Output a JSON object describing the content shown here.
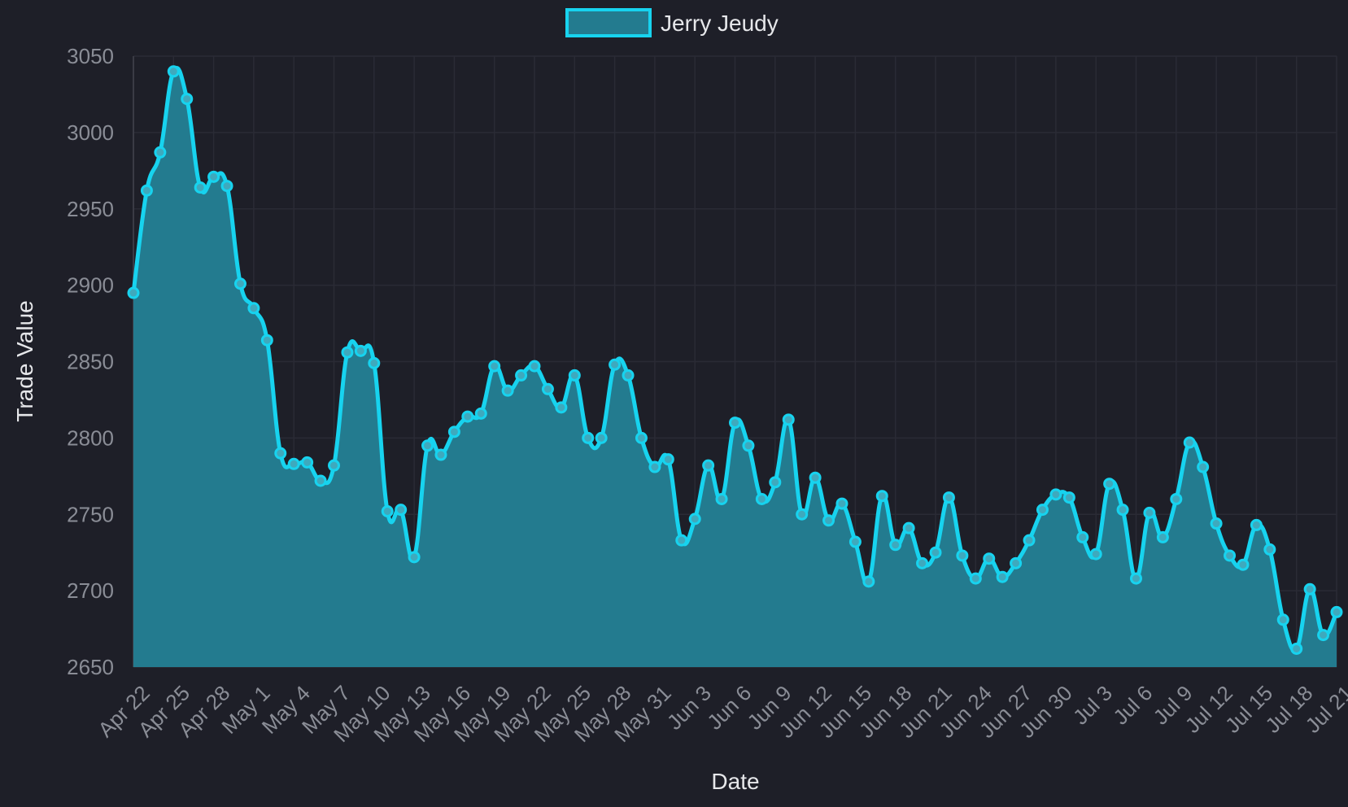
{
  "chart_data": {
    "type": "area",
    "xlabel": "Date",
    "ylabel": "Trade Value",
    "ylim": [
      2650,
      3050
    ],
    "yticks": [
      2650,
      2700,
      2750,
      2800,
      2850,
      2900,
      2950,
      3000,
      3050
    ],
    "grid": true,
    "legend_position": "top-center",
    "colors": {
      "background": "#1e1f28",
      "line": "#17d3ef",
      "fill": "#237b8f",
      "grid": "#2a2b35",
      "tick_text": "#8a8d96",
      "title_text": "#e6e7ea"
    },
    "x_tick_labels": [
      "Apr 22",
      "Apr 25",
      "Apr 28",
      "May 1",
      "May 4",
      "May 7",
      "May 10",
      "May 13",
      "May 16",
      "May 19",
      "May 22",
      "May 25",
      "May 28",
      "May 31",
      "Jun 3",
      "Jun 6",
      "Jun 9",
      "Jun 12",
      "Jun 15",
      "Jun 18",
      "Jun 21",
      "Jun 24",
      "Jun 27",
      "Jun 30",
      "Jul 3",
      "Jul 6",
      "Jul 9",
      "Jul 12",
      "Jul 15",
      "Jul 18",
      "Jul 21"
    ],
    "series": [
      {
        "name": "Jerry Jeudy",
        "values": [
          2895,
          2962,
          2987,
          3040,
          3022,
          2964,
          2971,
          2965,
          2901,
          2885,
          2864,
          2790,
          2783,
          2784,
          2772,
          2782,
          2856,
          2857,
          2849,
          2752,
          2753,
          2722,
          2795,
          2789,
          2804,
          2814,
          2816,
          2847,
          2831,
          2841,
          2847,
          2832,
          2820,
          2841,
          2800,
          2800,
          2848,
          2841,
          2800,
          2781,
          2786,
          2733,
          2747,
          2782,
          2760,
          2810,
          2795,
          2760,
          2771,
          2812,
          2750,
          2774,
          2746,
          2757,
          2732,
          2706,
          2762,
          2730,
          2741,
          2718,
          2725,
          2761,
          2723,
          2708,
          2721,
          2709,
          2718,
          2733,
          2753,
          2763,
          2761,
          2735,
          2724,
          2770,
          2753,
          2708,
          2751,
          2735,
          2760,
          2797,
          2781,
          2744,
          2723,
          2717,
          2743,
          2727,
          2681,
          2662,
          2701,
          2671,
          2686
        ]
      }
    ]
  }
}
